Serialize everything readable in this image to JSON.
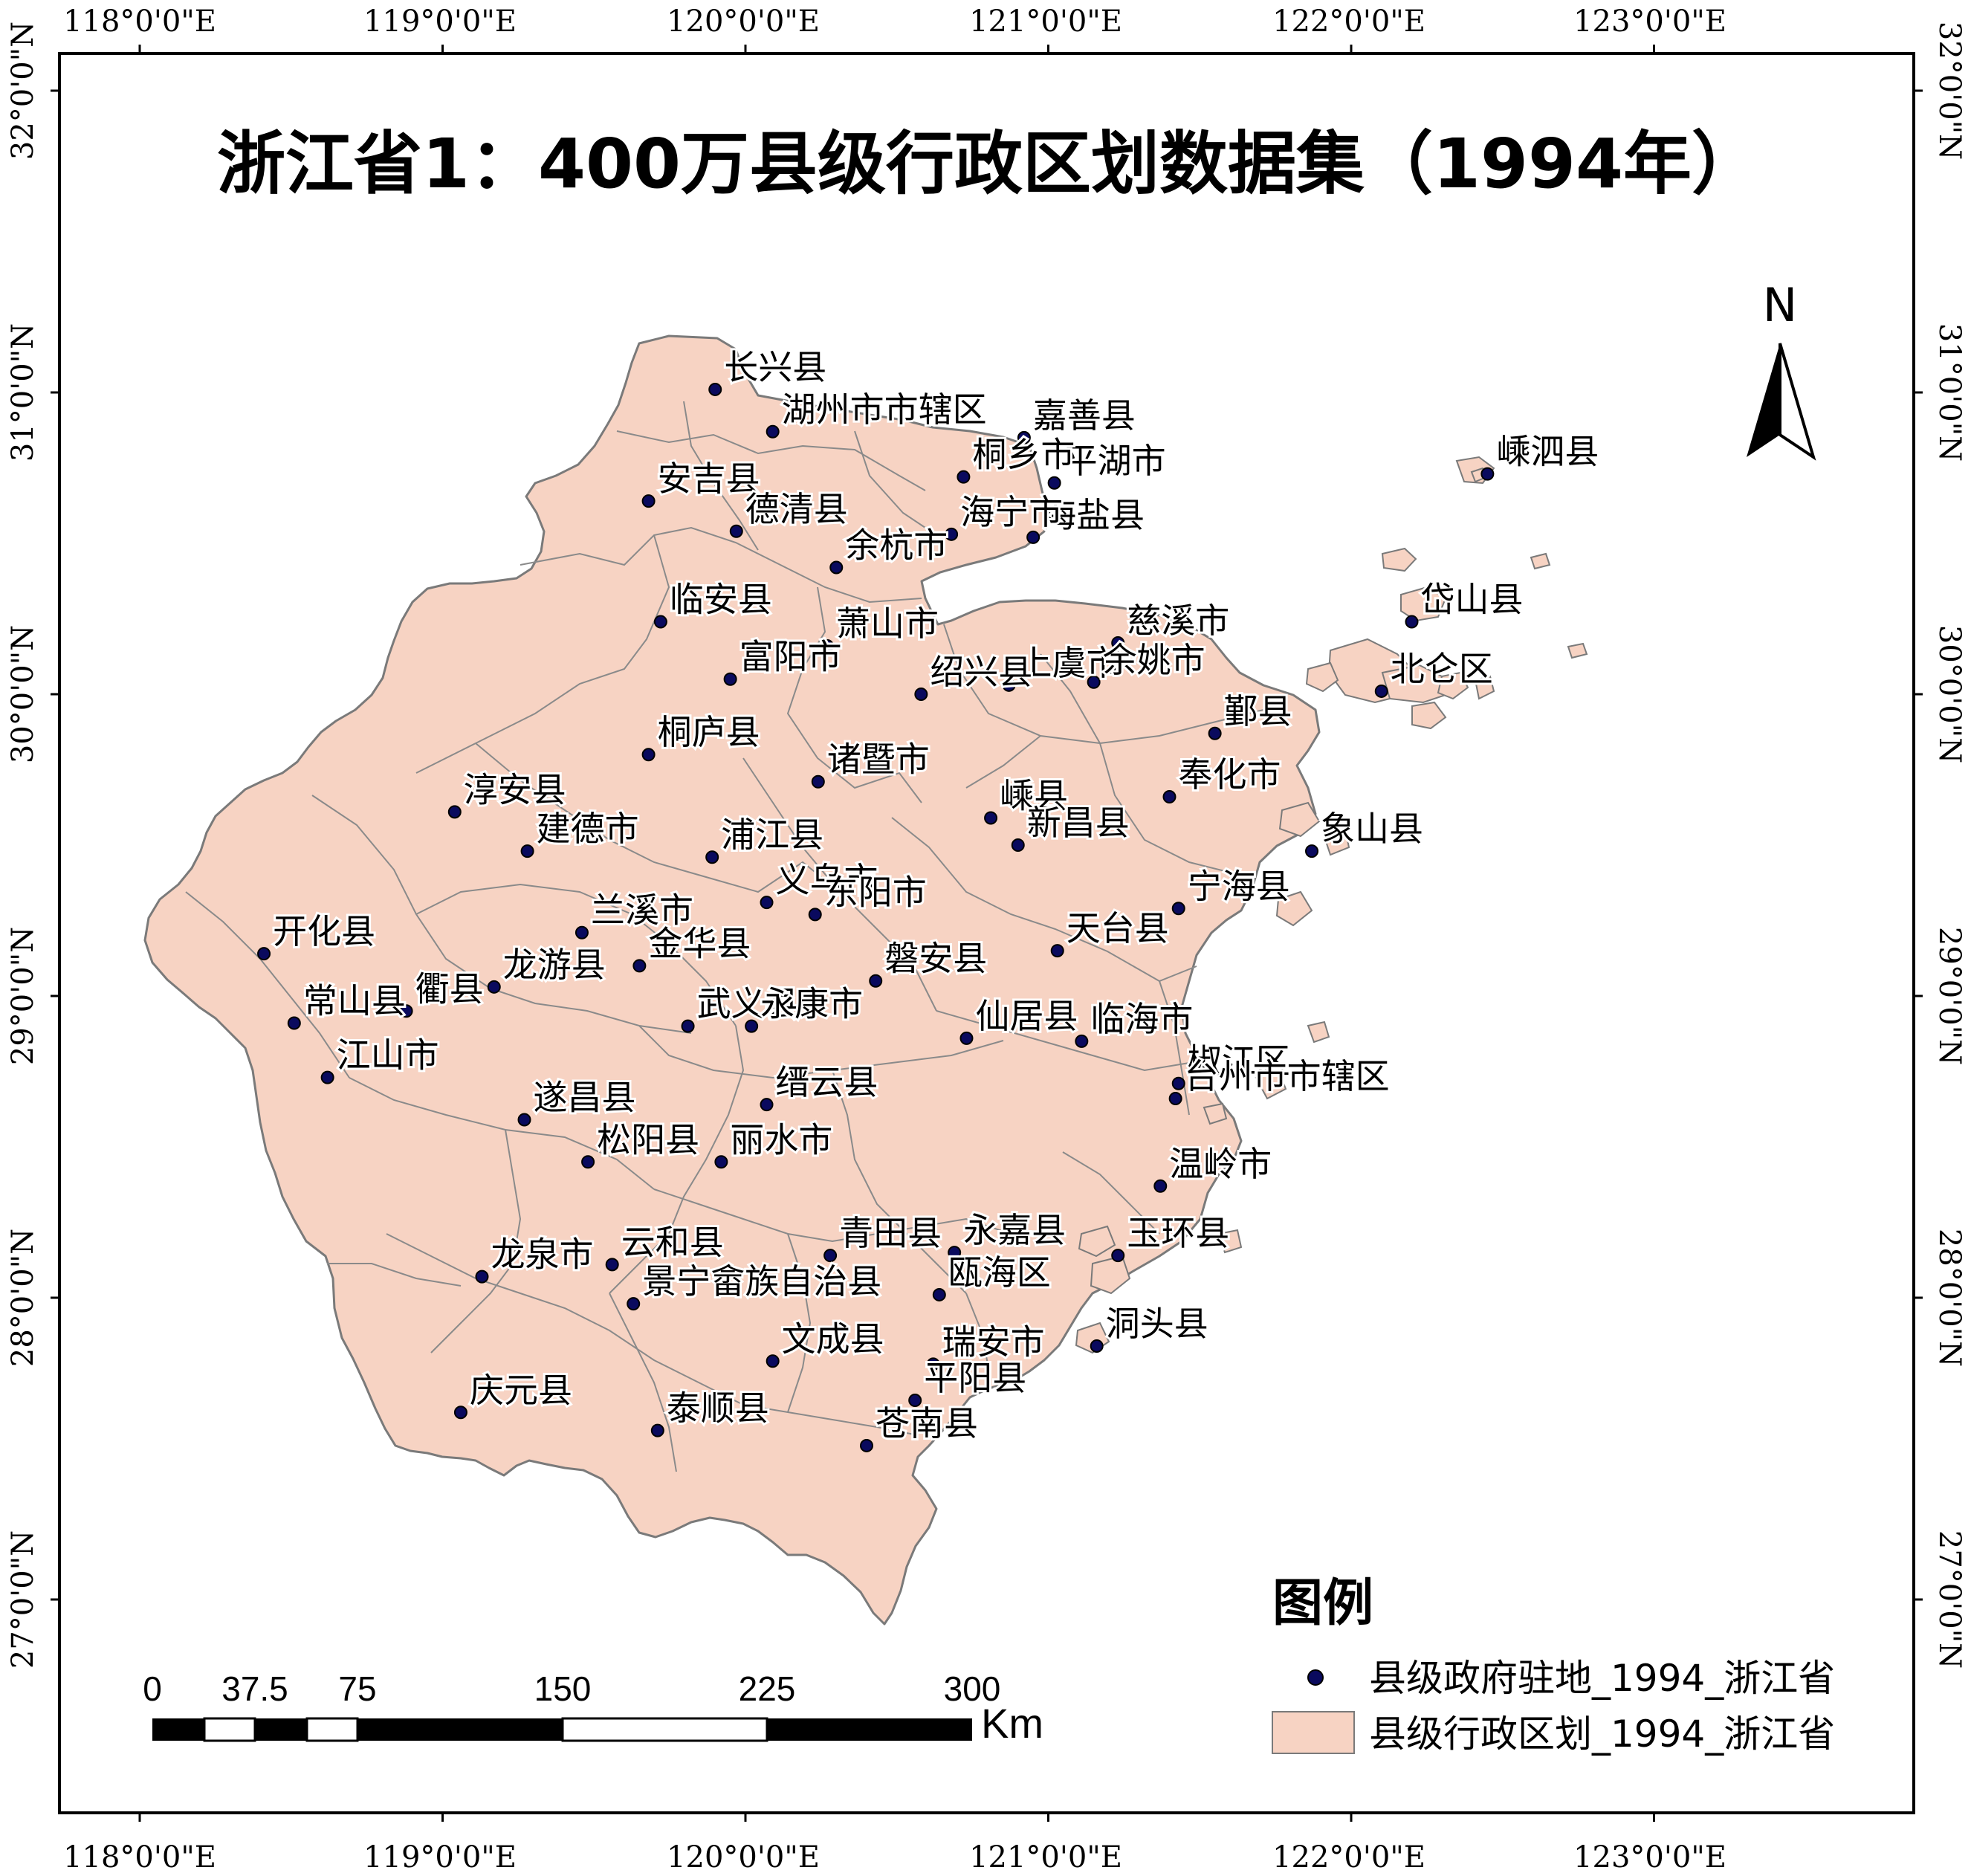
{
  "title": "浙江省1：400万县级行政区划数据集（1994年）",
  "north_arrow": {
    "label": "N"
  },
  "graticule": {
    "lon_labels": [
      "118°0'0\"E",
      "119°0'0\"E",
      "120°0'0\"E",
      "121°0'0\"E",
      "122°0'0\"E",
      "123°0'0\"E"
    ],
    "lat_labels": [
      "32°0'0\"N",
      "31°0'0\"N",
      "30°0'0\"N",
      "29°0'0\"N",
      "28°0'0\"N",
      "27°0'0\"N"
    ]
  },
  "legend": {
    "title": "图例",
    "items": [
      {
        "label": "县级政府驻地_1994_浙江省",
        "symbol": "point",
        "color": "#0a0a5e"
      },
      {
        "label": "县级行政区划_1994_浙江省",
        "symbol": "polygon",
        "color": "#f7d3c3"
      }
    ]
  },
  "scale_bar": {
    "labels": [
      "0",
      "37.5",
      "75",
      "150",
      "225",
      "300"
    ],
    "unit": "Km"
  },
  "colors": {
    "land": "#f7d3c3",
    "border": "#7a7a7a",
    "point": "#0a0a5e"
  },
  "places": [
    {
      "name": "长兴县",
      "lon": 119.9,
      "lat": 31.01
    },
    {
      "name": "湖州市市辖区",
      "lon": 120.09,
      "lat": 30.87
    },
    {
      "name": "嘉善县",
      "lon": 120.92,
      "lat": 30.85
    },
    {
      "name": "平湖市",
      "lon": 121.02,
      "lat": 30.7
    },
    {
      "name": "桐乡市",
      "lon": 120.72,
      "lat": 30.72
    },
    {
      "name": "安吉县",
      "lon": 119.68,
      "lat": 30.64
    },
    {
      "name": "德清县",
      "lon": 119.97,
      "lat": 30.54
    },
    {
      "name": "海盐县",
      "lon": 120.95,
      "lat": 30.52
    },
    {
      "name": "海宁市",
      "lon": 120.68,
      "lat": 30.53
    },
    {
      "name": "嵊泗县",
      "lon": 122.45,
      "lat": 30.73
    },
    {
      "name": "余杭市",
      "lon": 120.3,
      "lat": 30.42
    },
    {
      "name": "临安县",
      "lon": 119.72,
      "lat": 30.24
    },
    {
      "name": "萧山市",
      "lon": 120.27,
      "lat": 30.16
    },
    {
      "name": "岱山县",
      "lon": 122.2,
      "lat": 30.24
    },
    {
      "name": "慈溪市",
      "lon": 121.23,
      "lat": 30.17
    },
    {
      "name": "富阳市",
      "lon": 119.95,
      "lat": 30.05
    },
    {
      "name": "上虞市",
      "lon": 120.87,
      "lat": 30.03
    },
    {
      "name": "余姚市",
      "lon": 121.15,
      "lat": 30.04
    },
    {
      "name": "绍兴县",
      "lon": 120.58,
      "lat": 30.0
    },
    {
      "name": "北仑区",
      "lon": 122.1,
      "lat": 30.01
    },
    {
      "name": "鄞县",
      "lon": 121.55,
      "lat": 29.87
    },
    {
      "name": "桐庐县",
      "lon": 119.68,
      "lat": 29.8
    },
    {
      "name": "诸暨市",
      "lon": 120.24,
      "lat": 29.71
    },
    {
      "name": "奉化市",
      "lon": 121.4,
      "lat": 29.66
    },
    {
      "name": "淳安县",
      "lon": 119.04,
      "lat": 29.61
    },
    {
      "name": "嵊县",
      "lon": 120.81,
      "lat": 29.59
    },
    {
      "name": "新昌县",
      "lon": 120.9,
      "lat": 29.5
    },
    {
      "name": "象山县",
      "lon": 121.87,
      "lat": 29.48
    },
    {
      "name": "建德市",
      "lon": 119.28,
      "lat": 29.48
    },
    {
      "name": "浦江县",
      "lon": 119.89,
      "lat": 29.46
    },
    {
      "name": "义乌市",
      "lon": 120.07,
      "lat": 29.31
    },
    {
      "name": "宁海县",
      "lon": 121.43,
      "lat": 29.29
    },
    {
      "name": "东阳市",
      "lon": 120.23,
      "lat": 29.27
    },
    {
      "name": "兰溪市",
      "lon": 119.46,
      "lat": 29.21
    },
    {
      "name": "开化县",
      "lon": 118.41,
      "lat": 29.14
    },
    {
      "name": "天台县",
      "lon": 121.03,
      "lat": 29.15
    },
    {
      "name": "金华县",
      "lon": 119.65,
      "lat": 29.1
    },
    {
      "name": "龙游县",
      "lon": 119.17,
      "lat": 29.03
    },
    {
      "name": "磐安县",
      "lon": 120.43,
      "lat": 29.05
    },
    {
      "name": "衢县",
      "lon": 118.88,
      "lat": 28.95
    },
    {
      "name": "常山县",
      "lon": 118.51,
      "lat": 28.91
    },
    {
      "name": "武义县",
      "lon": 119.81,
      "lat": 28.9
    },
    {
      "name": "永康市",
      "lon": 120.02,
      "lat": 28.9
    },
    {
      "name": "临海市",
      "lon": 121.11,
      "lat": 28.85
    },
    {
      "name": "仙居县",
      "lon": 120.73,
      "lat": 28.86
    },
    {
      "name": "椒江区",
      "lon": 121.43,
      "lat": 28.71
    },
    {
      "name": "江山市",
      "lon": 118.62,
      "lat": 28.73
    },
    {
      "name": "台州市市辖区",
      "lon": 121.42,
      "lat": 28.66
    },
    {
      "name": "缙云县",
      "lon": 120.07,
      "lat": 28.64
    },
    {
      "name": "遂昌县",
      "lon": 119.27,
      "lat": 28.59
    },
    {
      "name": "松阳县",
      "lon": 119.48,
      "lat": 28.45
    },
    {
      "name": "丽水市",
      "lon": 119.92,
      "lat": 28.45
    },
    {
      "name": "温岭市",
      "lon": 121.37,
      "lat": 28.37
    },
    {
      "name": "玉环县",
      "lon": 121.23,
      "lat": 28.14
    },
    {
      "name": "青田县",
      "lon": 120.28,
      "lat": 28.14
    },
    {
      "name": "永嘉县",
      "lon": 120.69,
      "lat": 28.15
    },
    {
      "name": "云和县",
      "lon": 119.56,
      "lat": 28.11
    },
    {
      "name": "龙泉市",
      "lon": 119.13,
      "lat": 28.07
    },
    {
      "name": "瓯海区",
      "lon": 120.64,
      "lat": 28.01
    },
    {
      "name": "景宁畲族自治县",
      "lon": 119.63,
      "lat": 27.98
    },
    {
      "name": "洞头县",
      "lon": 121.16,
      "lat": 27.84
    },
    {
      "name": "文成县",
      "lon": 120.09,
      "lat": 27.79
    },
    {
      "name": "瑞安市",
      "lon": 120.62,
      "lat": 27.78
    },
    {
      "name": "平阳县",
      "lon": 120.56,
      "lat": 27.66
    },
    {
      "name": "庆元县",
      "lon": 119.06,
      "lat": 27.62
    },
    {
      "name": "泰顺县",
      "lon": 119.71,
      "lat": 27.56
    },
    {
      "name": "苍南县",
      "lon": 120.4,
      "lat": 27.51
    }
  ]
}
